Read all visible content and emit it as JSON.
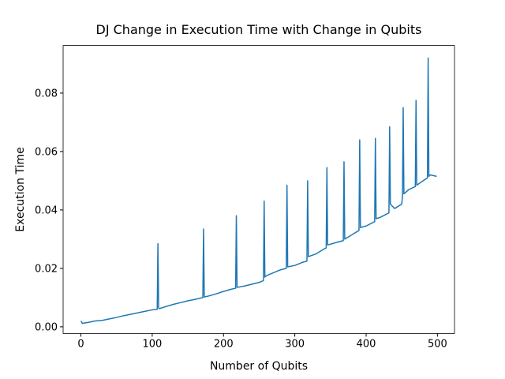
{
  "chart_data": {
    "type": "line",
    "title": "DJ Change in Execution Time with Change in Qubits",
    "x_label": "Number of Qubits",
    "y_label": "Execution Time",
    "color": "#1f77b4",
    "xlim": [
      -24.95,
      523.95
    ],
    "ylim": [
      -0.0023,
      0.0963
    ],
    "xticks": [
      0,
      100,
      200,
      300,
      400,
      500
    ],
    "yticks": [
      {
        "value": 0,
        "label": "0.00"
      },
      {
        "value": 0.02,
        "label": "0.02"
      },
      {
        "value": 0.04,
        "label": "0.04"
      },
      {
        "value": 0.06,
        "label": "0.06"
      },
      {
        "value": 0.08,
        "label": "0.08"
      }
    ],
    "x": [
      0,
      2,
      10,
      20,
      30,
      40,
      50,
      60,
      70,
      80,
      90,
      100,
      107,
      108,
      109,
      110,
      120,
      130,
      140,
      150,
      160,
      171,
      172,
      173,
      180,
      190,
      200,
      210,
      217,
      218,
      219,
      230,
      240,
      250,
      256,
      257,
      258,
      260,
      270,
      280,
      288,
      289,
      290,
      300,
      310,
      317,
      318,
      319,
      330,
      340,
      344,
      345,
      346,
      360,
      368,
      369,
      370,
      380,
      390,
      391,
      392,
      400,
      412,
      413,
      414,
      420,
      432,
      433,
      434,
      440,
      450,
      451,
      452,
      453,
      460,
      469,
      470,
      471,
      480,
      486,
      487,
      488,
      490,
      499
    ],
    "values": [
      0.002,
      0.0012,
      0.0015,
      0.002,
      0.0022,
      0.0027,
      0.0032,
      0.0038,
      0.0043,
      0.0048,
      0.0053,
      0.0058,
      0.006,
      0.0285,
      0.0065,
      0.0062,
      0.007,
      0.0077,
      0.0083,
      0.0089,
      0.0094,
      0.01,
      0.0335,
      0.0102,
      0.0106,
      0.0113,
      0.0121,
      0.0128,
      0.0132,
      0.038,
      0.0135,
      0.014,
      0.0146,
      0.0152,
      0.0158,
      0.043,
      0.017,
      0.0175,
      0.0185,
      0.0195,
      0.02,
      0.0485,
      0.0205,
      0.021,
      0.022,
      0.0225,
      0.05,
      0.024,
      0.025,
      0.0265,
      0.027,
      0.0545,
      0.028,
      0.029,
      0.0295,
      0.0565,
      0.03,
      0.0315,
      0.033,
      0.064,
      0.034,
      0.0345,
      0.036,
      0.0645,
      0.037,
      0.0375,
      0.039,
      0.0685,
      0.042,
      0.0405,
      0.042,
      0.045,
      0.075,
      0.0455,
      0.047,
      0.048,
      0.0775,
      0.0485,
      0.05,
      0.051,
      0.092,
      0.0515,
      0.052,
      0.0515
    ]
  }
}
